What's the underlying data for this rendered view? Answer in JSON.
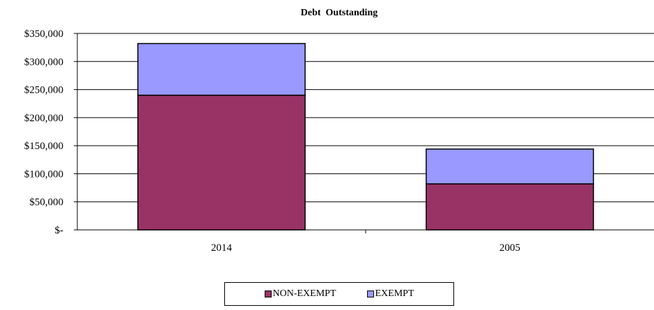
{
  "chart_data": {
    "type": "bar",
    "stacked": true,
    "title": "Debt  Outstanding",
    "xlabel": "",
    "ylabel": "",
    "categories": [
      "2014",
      "2005"
    ],
    "series": [
      {
        "name": "NON-EXEMPT",
        "values": [
          240000,
          82000
        ],
        "color": "#993366"
      },
      {
        "name": "EXEMPT",
        "values": [
          92000,
          62000
        ],
        "color": "#9999ff"
      }
    ],
    "ylim": [
      0,
      350000
    ],
    "yticks": [
      0,
      50000,
      100000,
      150000,
      200000,
      250000,
      300000,
      350000
    ],
    "ytick_labels": [
      "$-",
      "$50,000",
      "$100,000",
      "$150,000",
      "$200,000",
      "$250,000",
      "$300,000",
      "$350,000"
    ],
    "grid": true,
    "legend_position": "bottom"
  }
}
